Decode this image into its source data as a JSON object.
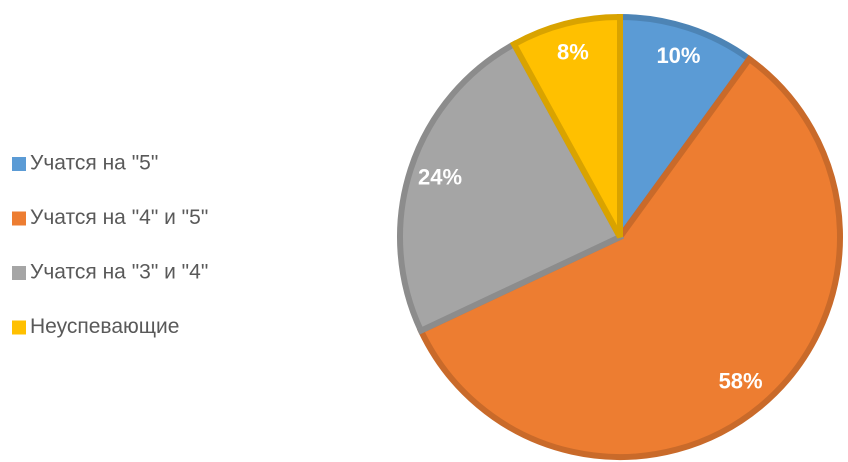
{
  "chart_data": {
    "type": "pie",
    "categories": [
      "Учатся на \"5\"",
      "Учатся на \"4\" и \"5\"",
      "Учатся на \"3\" и \"4\"",
      "Неуспевающие"
    ],
    "values": [
      10,
      58,
      24,
      8
    ],
    "value_labels": [
      "10%",
      "58%",
      "24%",
      "8%"
    ],
    "colors": [
      "#5b9bd5",
      "#ed7d31",
      "#a5a5a5",
      "#ffc000"
    ],
    "legend": "left"
  }
}
